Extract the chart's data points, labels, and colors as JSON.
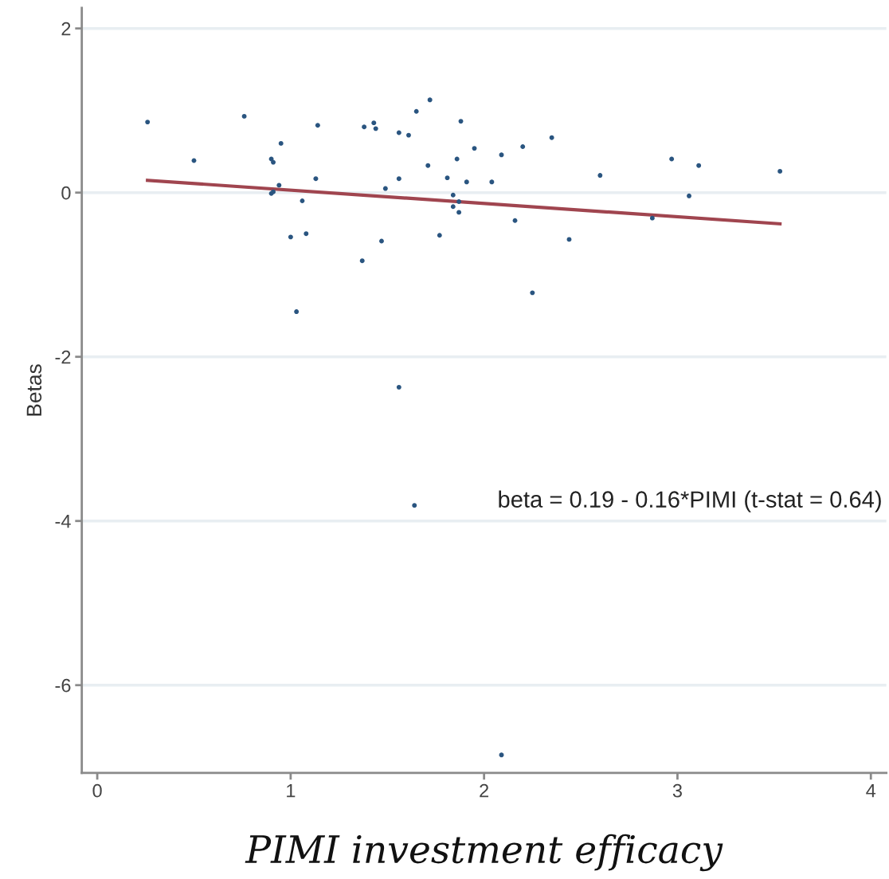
{
  "chart_data": {
    "type": "scatter",
    "xlabel": "PIMI investment efficacy",
    "ylabel": "Betas",
    "xlim": [
      -0.08,
      4.08
    ],
    "xticks": [
      0,
      1,
      2,
      3,
      4
    ],
    "ylim": [
      -7.07,
      2.25
    ],
    "yticks": [
      -6,
      -4,
      -2,
      0,
      2
    ],
    "grid": "y",
    "annotations": [
      "beta = 0.19 - 0.16*PIMI (t-stat = 0.64)"
    ],
    "series": [
      {
        "marker": "circle",
        "color": "#2a5580",
        "x": [
          0.26,
          0.5,
          0.76,
          0.9,
          0.91,
          0.9,
          0.91,
          0.94,
          0.95,
          1.0,
          1.03,
          1.06,
          1.08,
          1.13,
          1.14,
          1.37,
          1.38,
          1.43,
          1.44,
          1.47,
          1.49,
          1.56,
          1.56,
          1.56,
          1.61,
          1.64,
          1.65,
          1.71,
          1.72,
          1.77,
          1.81,
          1.84,
          1.84,
          1.87,
          1.87,
          1.86,
          1.88,
          1.91,
          1.95,
          2.04,
          2.09,
          2.16,
          2.2,
          2.25,
          2.35,
          2.44,
          2.6,
          2.87,
          2.97,
          3.06,
          3.11,
          3.53,
          2.09
        ],
        "values": [
          0.86,
          0.39,
          0.93,
          0.41,
          0.37,
          -0.01,
          0.01,
          0.09,
          0.6,
          -0.54,
          -1.45,
          -0.1,
          -0.5,
          0.17,
          0.82,
          -0.83,
          0.8,
          0.85,
          0.78,
          -0.59,
          0.05,
          0.17,
          -2.37,
          0.73,
          0.7,
          -3.81,
          0.99,
          0.33,
          1.13,
          -0.52,
          0.18,
          -0.03,
          -0.17,
          -0.11,
          -0.24,
          0.41,
          0.87,
          0.13,
          0.54,
          0.13,
          0.46,
          -0.34,
          0.56,
          -1.22,
          0.67,
          -0.57,
          0.21,
          -0.31,
          0.41,
          -0.04,
          0.33,
          0.26,
          -6.85
        ]
      },
      {
        "type": "line",
        "marker": "none",
        "color": "#a0454f",
        "x": [
          0.26,
          3.53
        ],
        "values": [
          0.15,
          -0.38
        ]
      }
    ]
  }
}
